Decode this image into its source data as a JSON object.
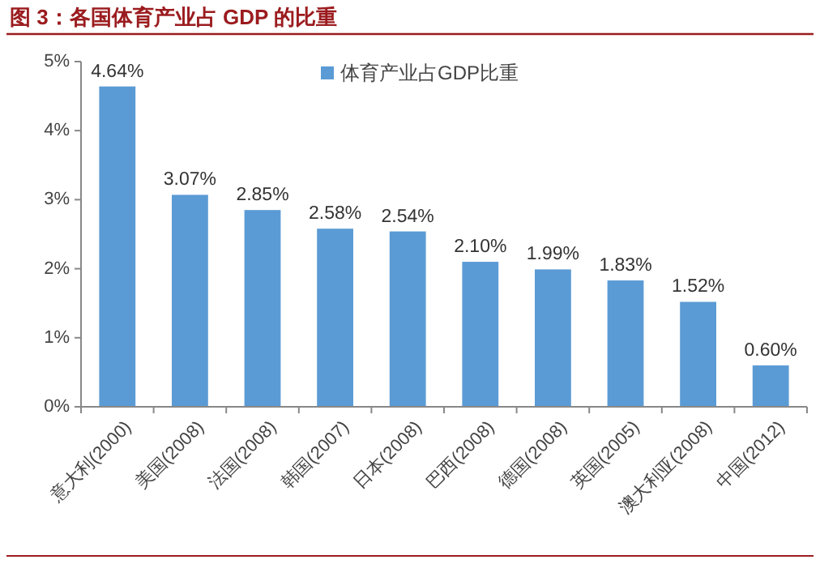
{
  "chart_data": {
    "type": "bar",
    "title": "图 3：各国体育产业占 GDP 的比重",
    "categories": [
      "意大利(2000)",
      "美国(2008)",
      "法国(2008)",
      "韩国(2007)",
      "日本(2008)",
      "巴西(2008)",
      "德国(2008)",
      "英国(2005)",
      "澳大利亚(2008)",
      "中国(2012)"
    ],
    "series": [
      {
        "name": "体育产业占GDP比重",
        "color": "#5b9bd5",
        "values": [
          4.64,
          3.07,
          2.85,
          2.58,
          2.54,
          2.1,
          1.99,
          1.83,
          1.52,
          0.6
        ],
        "value_labels": [
          "4.64%",
          "3.07%",
          "2.85%",
          "2.58%",
          "2.54%",
          "2.10%",
          "1.99%",
          "1.83%",
          "1.52%",
          "0.60%"
        ]
      }
    ],
    "ylim": [
      0,
      5
    ],
    "yticks": [
      {
        "value": 0,
        "label": "0%"
      },
      {
        "value": 1,
        "label": "1%"
      },
      {
        "value": 2,
        "label": "2%"
      },
      {
        "value": 3,
        "label": "3%"
      },
      {
        "value": 4,
        "label": "4%"
      },
      {
        "value": 5,
        "label": "5%"
      }
    ],
    "grid": false,
    "legend": "top"
  }
}
